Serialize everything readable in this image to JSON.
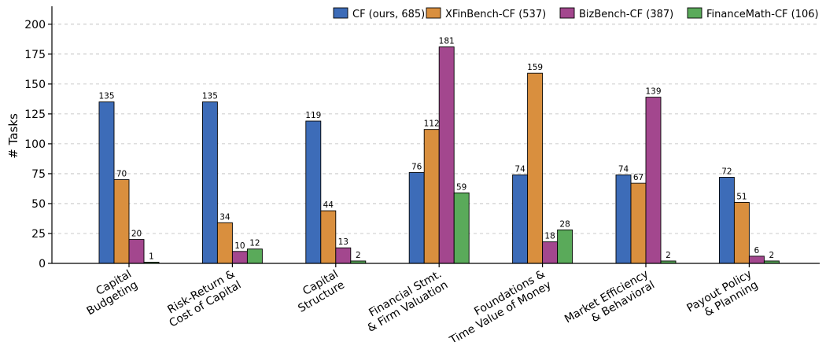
{
  "chart_data": {
    "type": "bar",
    "ylabel": "# Tasks",
    "xlabel": "",
    "ylim": [
      0,
      215
    ],
    "yticks": [
      0,
      25,
      50,
      75,
      100,
      125,
      150,
      175,
      200
    ],
    "grid": "horizontal-dashed",
    "legend_placement": "top-right",
    "categories": [
      [
        "Capital",
        "Budgeting"
      ],
      [
        "Risk-Return &",
        "Cost of Capital"
      ],
      [
        "Capital",
        "Structure"
      ],
      [
        "Financial Stmt.",
        "& Firm Valuation"
      ],
      [
        "Foundations &",
        "Time Value of Money"
      ],
      [
        "Market Efficiency",
        "& Behavioral"
      ],
      [
        "Payout Policy",
        "& Planning"
      ]
    ],
    "series": [
      {
        "name": "CF (ours, 685)",
        "color": "#3d6cb8",
        "values": [
          135,
          135,
          119,
          76,
          74,
          74,
          72
        ]
      },
      {
        "name": "XFinBench-CF (537)",
        "color": "#d98f3e",
        "values": [
          70,
          34,
          44,
          112,
          159,
          67,
          51
        ]
      },
      {
        "name": "BizBench-CF (387)",
        "color": "#a3478e",
        "values": [
          20,
          10,
          13,
          181,
          18,
          139,
          6
        ]
      },
      {
        "name": "FinanceMath-CF (106)",
        "color": "#5aaa5a",
        "values": [
          1,
          12,
          2,
          59,
          28,
          2,
          2
        ]
      }
    ]
  }
}
